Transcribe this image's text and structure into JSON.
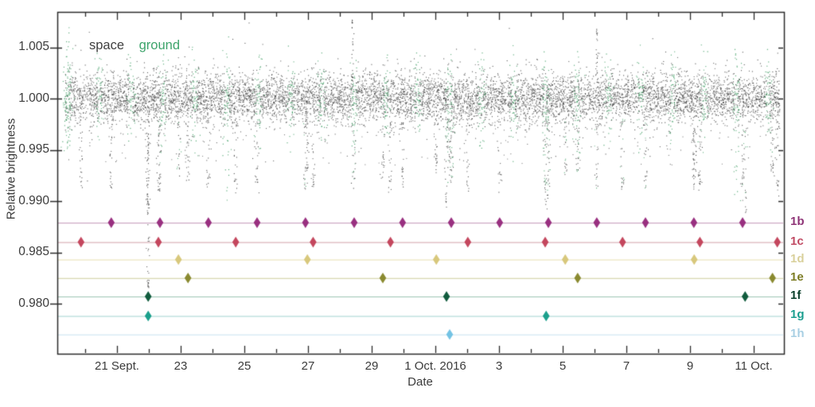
{
  "chart_data": {
    "type": "scatter",
    "title": "",
    "xlabel": "Date",
    "ylabel": "Relative brightness",
    "x_unit": "days since 21 Sept. 2016",
    "xlim": [
      -1.875,
      20.95
    ],
    "ylim": [
      0.9751,
      1.0085
    ],
    "grid": false,
    "x_ticks": [
      {
        "t": 0,
        "label": "21 Sept."
      },
      {
        "t": 2,
        "label": "23"
      },
      {
        "t": 4,
        "label": "25"
      },
      {
        "t": 6,
        "label": "27"
      },
      {
        "t": 8,
        "label": "29"
      },
      {
        "t": 10,
        "label": "1 Oct. 2016"
      },
      {
        "t": 12,
        "label": "3"
      },
      {
        "t": 14,
        "label": "5"
      },
      {
        "t": 16,
        "label": "7"
      },
      {
        "t": 18,
        "label": "9"
      },
      {
        "t": 20,
        "label": "11 Oct."
      }
    ],
    "x_minor_tick_step_days": 1,
    "y_ticks": [
      {
        "v": 1.005,
        "label": "1.005"
      },
      {
        "v": 1.0,
        "label": "1.000"
      },
      {
        "v": 0.995,
        "label": "0.995"
      },
      {
        "v": 0.99,
        "label": "0.990"
      },
      {
        "v": 0.985,
        "label": "0.985"
      },
      {
        "v": 0.98,
        "label": "0.980"
      }
    ],
    "legend": {
      "position": "top-left",
      "entries": [
        {
          "name": "space",
          "color": "#3e3e3e"
        },
        {
          "name": "ground",
          "color": "#3da46b"
        }
      ]
    },
    "series": [
      {
        "name": "space",
        "marker": "dot",
        "color": "#2e2e2e",
        "baseline": 1.0,
        "noise_sigma": 0.0012,
        "coverage_days": [
          -1.62,
          20.82
        ],
        "points_count": 9000
      },
      {
        "name": "ground",
        "marker": "dot",
        "color": "#3c9c62",
        "baseline": 1.0,
        "noise_sigma": 0.0019,
        "nights_start": -1.55,
        "nights_count": 23,
        "night_sigma_days": 0.07,
        "points_per_night": 55,
        "extended_nights": [
          5,
          12,
          21
        ]
      }
    ],
    "flares": [
      {
        "t": 7.4,
        "peak": 1.0078
      },
      {
        "t": 15.08,
        "peak": 1.0068
      }
    ],
    "deep_transit_event": {
      "t": 0.98,
      "floor": 0.9815,
      "planets": "1f+1g"
    },
    "planets": [
      {
        "label": "1b",
        "level": 0.9879,
        "marker_color": "#993080",
        "line_color": "#cdaac4",
        "label_color": "#8e3477",
        "dip_floor": 0.9921,
        "transits": [
          -0.18,
          1.35,
          2.87,
          4.4,
          5.92,
          7.45,
          8.97,
          10.5,
          12.02,
          13.55,
          15.07,
          16.6,
          18.12,
          19.65
        ]
      },
      {
        "label": "1c",
        "level": 0.986,
        "marker_color": "#c4475e",
        "line_color": "#dbb3ba",
        "label_color": "#c04a63",
        "dip_floor": 0.9918,
        "transits": [
          -1.13,
          1.3,
          3.73,
          6.16,
          8.59,
          11.02,
          13.45,
          15.88,
          18.31,
          20.74
        ]
      },
      {
        "label": "1d",
        "level": 0.9843,
        "marker_color": "#d8c87c",
        "line_color": "#e8dfb2",
        "label_color": "#d9d09b",
        "dip_floor": 0.9934,
        "transits": [
          1.93,
          5.98,
          10.03,
          14.08,
          18.13
        ]
      },
      {
        "label": "1e",
        "level": 0.9825,
        "marker_color": "#8a8a30",
        "line_color": "#cdcd9a",
        "label_color": "#7c7c24",
        "dip_floor": 0.993,
        "transits": [
          2.23,
          8.35,
          14.47,
          20.59
        ]
      },
      {
        "label": "1f",
        "level": 0.9807,
        "marker_color": "#115c3e",
        "line_color": "#9cc5b3",
        "label_color": "#0b3f2b",
        "dip_floor": 0.99,
        "transits": [
          0.98,
          10.35,
          19.73
        ]
      },
      {
        "label": "1g",
        "level": 0.9788,
        "marker_color": "#1ba08c",
        "line_color": "#a4d6cf",
        "label_color": "#1b9e8f",
        "dip_floor": 0.9903,
        "transits": [
          0.98,
          13.48
        ]
      },
      {
        "label": "1h",
        "level": 0.977,
        "marker_color": "#74c3e4",
        "line_color": "#c9e2ef",
        "label_color": "#a8cfe3",
        "dip_floor": 0.9945,
        "transits": [
          10.45
        ]
      }
    ]
  }
}
